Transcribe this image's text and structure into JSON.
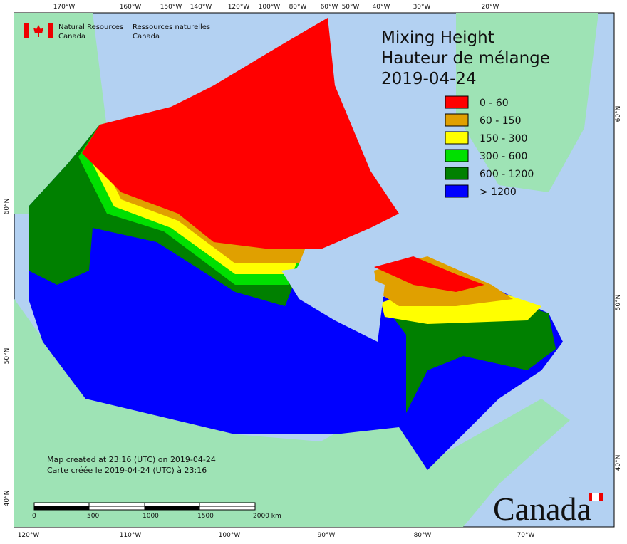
{
  "logo": {
    "en": [
      "Natural Resources",
      "Canada"
    ],
    "fr": [
      "Ressources naturelles",
      "Canada"
    ]
  },
  "title": [
    "Mixing Height",
    "Hauteur de mélange",
    "2019-04-24"
  ],
  "legend": [
    {
      "label": "0 - 60",
      "color": "#ff0000"
    },
    {
      "label": "60 - 150",
      "color": "#e0a000"
    },
    {
      "label": "150 - 300",
      "color": "#ffff00"
    },
    {
      "label": "300 - 600",
      "color": "#00e000"
    },
    {
      "label": "600 - 1200",
      "color": "#008000"
    },
    {
      "label": "> 1200",
      "color": "#0000ff"
    }
  ],
  "top_longitudes": [
    "170°W",
    "160°W",
    "150°W",
    "140°W",
    "120°W",
    "100°W",
    "80°W",
    "60°W",
    "50°W",
    "40°W",
    "30°W",
    "20°W"
  ],
  "bottom_longitudes": [
    "120°W",
    "110°W",
    "100°W",
    "90°W",
    "80°W",
    "70°W"
  ],
  "left_latitudes": [
    "60°N",
    "50°N",
    "40°N"
  ],
  "right_latitudes": [
    "60°N",
    "50°N",
    "40°N"
  ],
  "notes": [
    "Map created at 23:16 (UTC) on 2019-04-24",
    "Carte créée le 2019-04-24 (UTC) à 23:16"
  ],
  "scale_labels": [
    "0",
    "500",
    "1000",
    "1500",
    "2000 km"
  ],
  "wordmark": "Canada"
}
